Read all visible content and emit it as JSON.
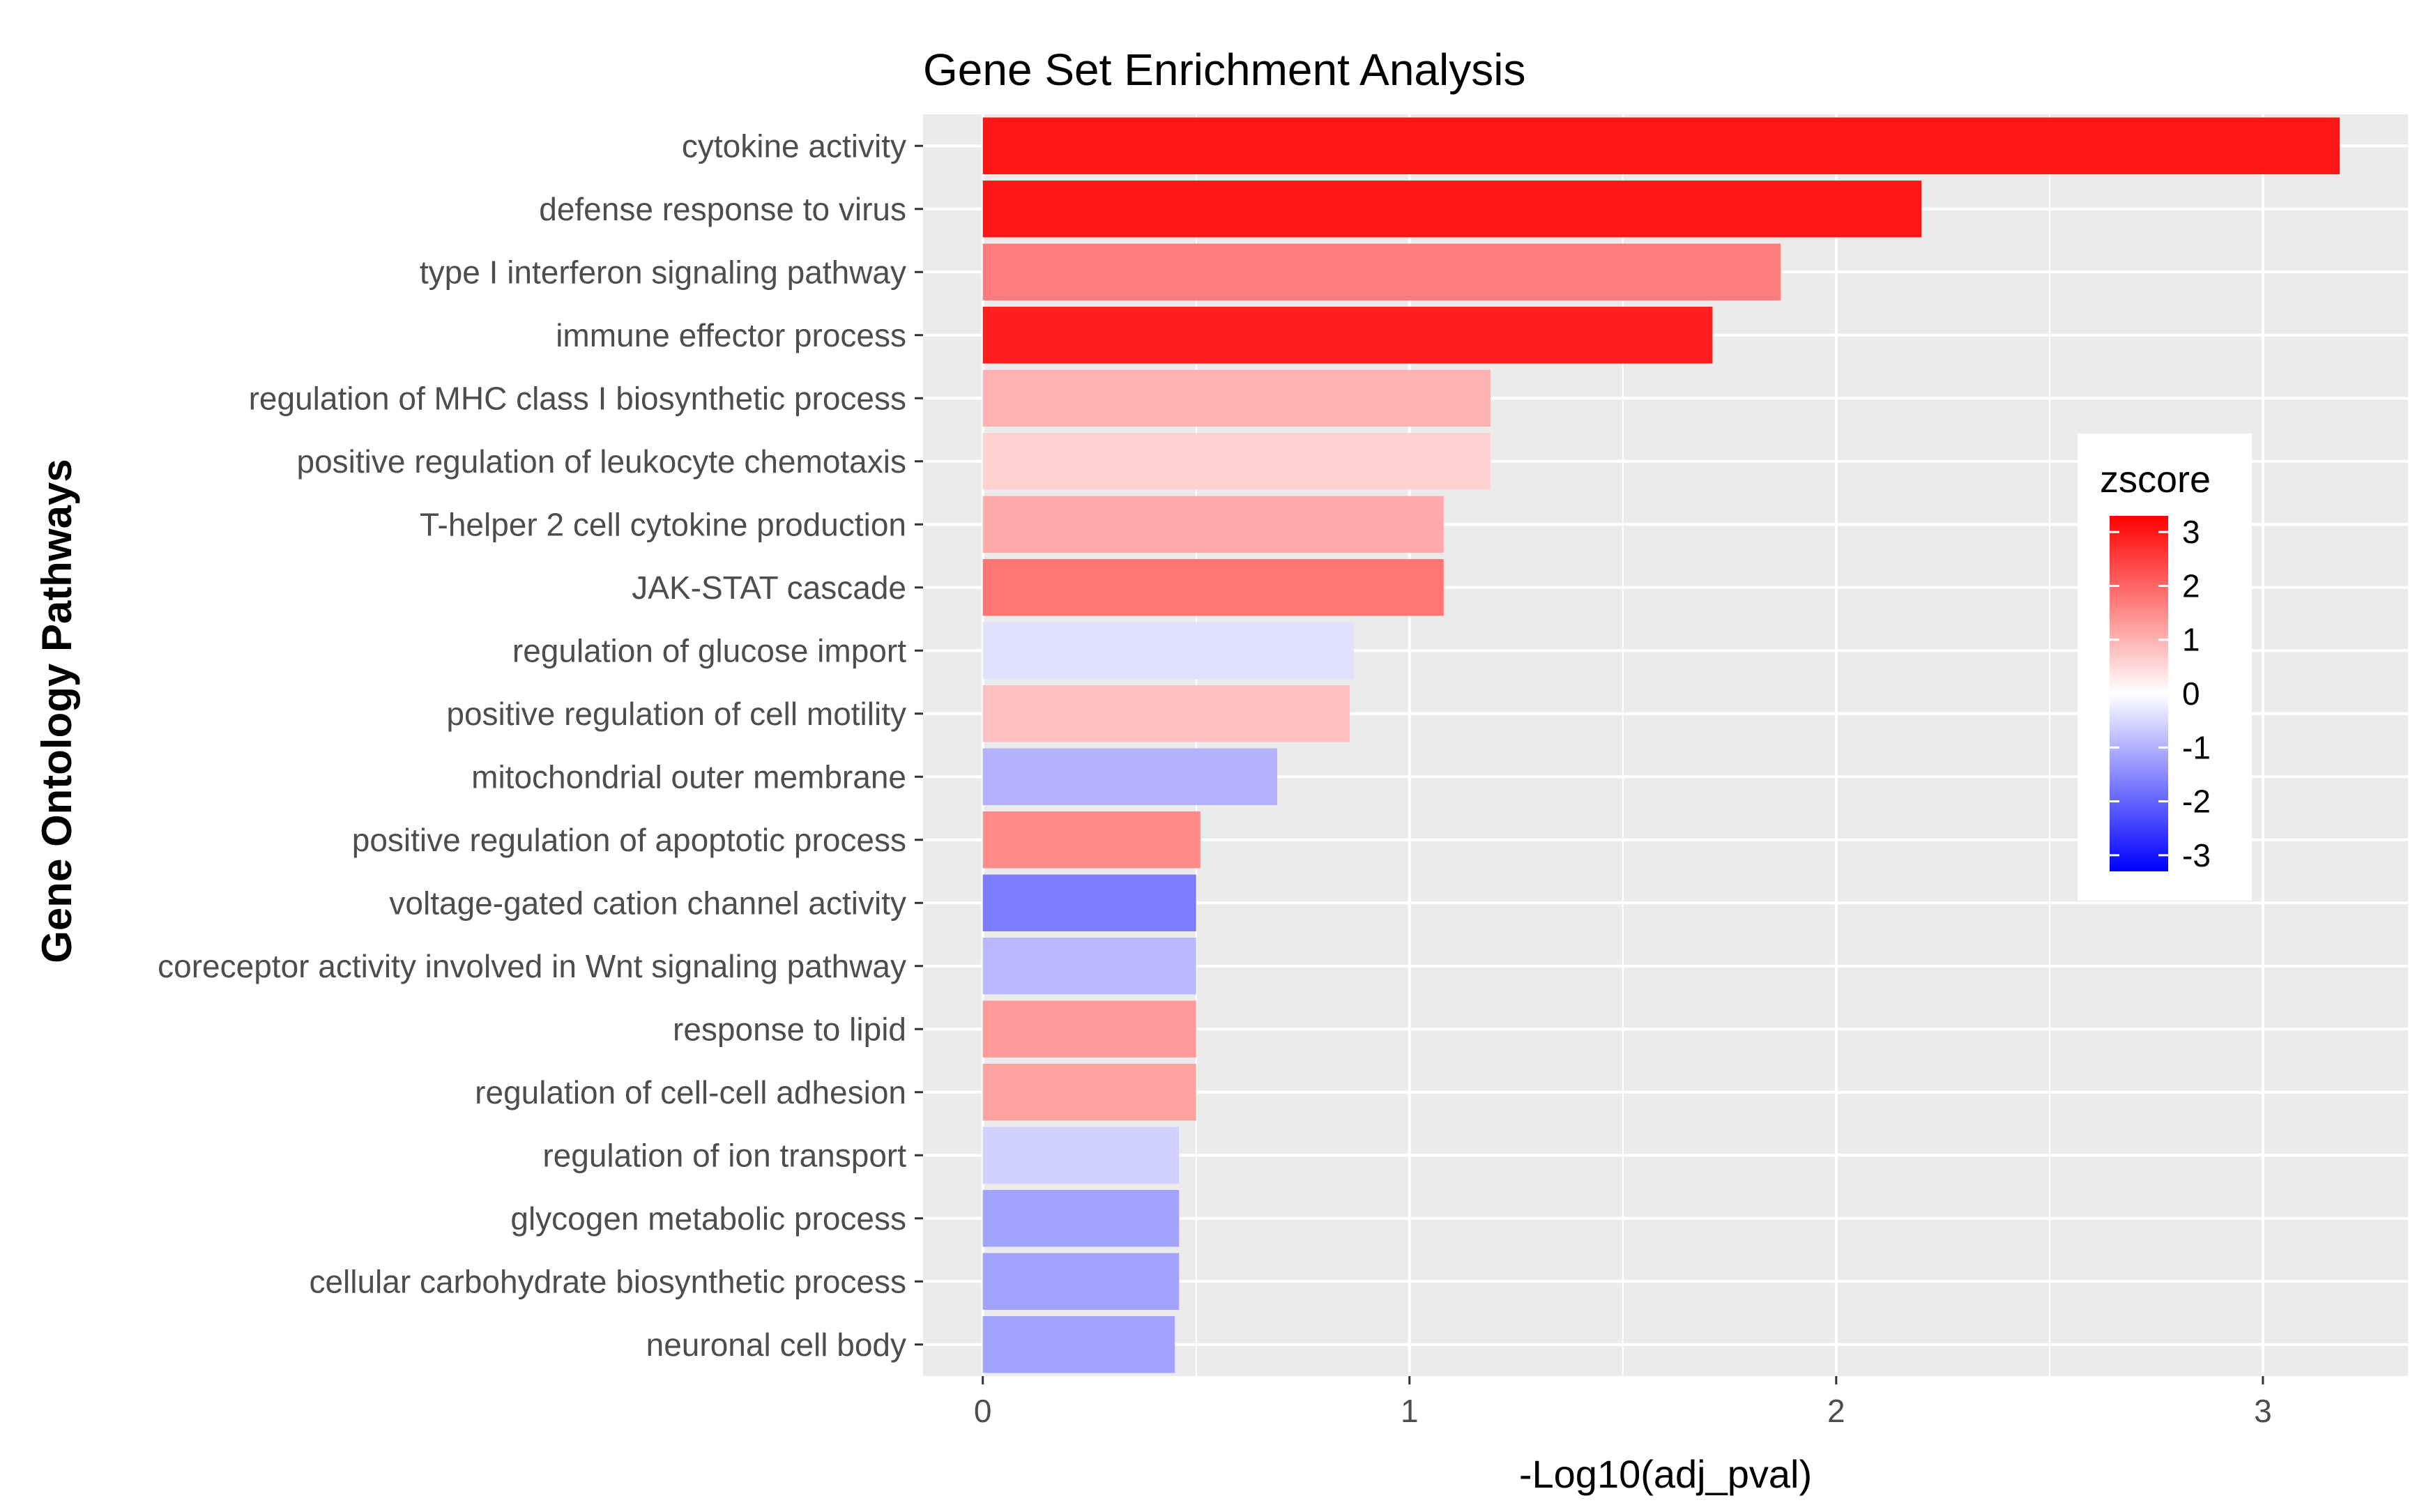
{
  "chart_data": {
    "type": "bar",
    "orientation": "horizontal",
    "title": "Gene Set Enrichment Analysis",
    "xlabel": "-Log10(adj_pval)",
    "ylabel": "Gene Ontology Pathways",
    "xlim": [
      -0.14,
      3.34
    ],
    "xticks": [
      0,
      1,
      2,
      3
    ],
    "xtick_labels": [
      "0",
      "1",
      "2",
      "3"
    ],
    "grid": true,
    "categories": [
      "cytokine activity",
      "defense response to virus",
      "type I interferon signaling pathway",
      "immune effector process",
      "regulation of MHC class I biosynthetic process",
      "positive regulation of leukocyte chemotaxis",
      "T-helper 2 cell cytokine production",
      "JAK-STAT cascade",
      "regulation of glucose import",
      "positive regulation of cell motility",
      "mitochondrial outer membrane",
      "positive regulation of apoptotic process",
      "voltage-gated cation channel activity",
      "coreceptor activity involved in Wnt signaling pathway",
      "response to lipid",
      "regulation of cell-cell adhesion",
      "regulation of ion transport",
      "glycogen metabolic process",
      "cellular carbohydrate biosynthetic process",
      "neuronal cell body"
    ],
    "values": [
      3.18,
      2.2,
      1.87,
      1.71,
      1.19,
      1.19,
      1.08,
      1.08,
      0.87,
      0.86,
      0.69,
      0.51,
      0.5,
      0.5,
      0.5,
      0.5,
      0.46,
      0.46,
      0.46,
      0.45
    ],
    "zscore": [
      3.0,
      3.0,
      1.7,
      2.9,
      1.0,
      0.6,
      1.1,
      1.8,
      -0.4,
      0.8,
      -1.0,
      1.5,
      -1.7,
      -0.9,
      1.3,
      1.2,
      -0.6,
      -1.2,
      -1.2,
      -1.2
    ],
    "legend": {
      "title": "zscore",
      "placement": "right",
      "range": [
        -3.3,
        3.3
      ],
      "ticks": [
        3,
        2,
        1,
        0,
        -1,
        -2,
        -3
      ],
      "tick_labels": [
        "3",
        "2",
        "1",
        "0",
        "-1",
        "-2",
        "-3"
      ],
      "colors": {
        "low": "#0000ff",
        "mid": "#ffffff",
        "high": "#ff0000"
      }
    },
    "panel_background": "#ebebeb",
    "gridline_color": "#ffffff"
  }
}
